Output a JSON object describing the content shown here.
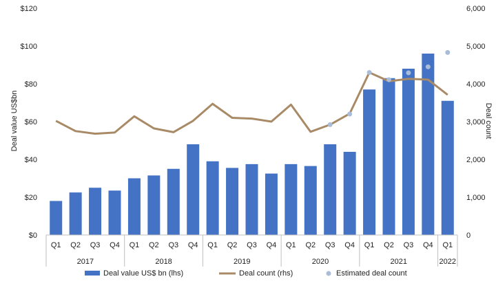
{
  "chart_data": {
    "type": "bar",
    "categories": [
      "Q1",
      "Q2",
      "Q3",
      "Q4",
      "Q1",
      "Q2",
      "Q3",
      "Q4",
      "Q1",
      "Q2",
      "Q3",
      "Q4",
      "Q1",
      "Q2",
      "Q3",
      "Q4",
      "Q1",
      "Q2",
      "Q3",
      "Q4",
      "Q1"
    ],
    "years": [
      {
        "label": "2017",
        "quarters": 4
      },
      {
        "label": "2018",
        "quarters": 4
      },
      {
        "label": "2019",
        "quarters": 4
      },
      {
        "label": "2020",
        "quarters": 4
      },
      {
        "label": "2021",
        "quarters": 4
      },
      {
        "label": "2022",
        "quarters": 1
      }
    ],
    "series": [
      {
        "name": "Deal value US$ bn (lhs)",
        "type": "bar",
        "axis": "left",
        "color": "#4472c4",
        "values": [
          18,
          22.5,
          25,
          23.5,
          30,
          31.5,
          35,
          48,
          39,
          35.5,
          37.5,
          32.5,
          37.5,
          36.5,
          48,
          44,
          77,
          83,
          88,
          96,
          71
        ]
      },
      {
        "name": "Deal count (rhs)",
        "type": "line",
        "axis": "right",
        "color": "#a88a66",
        "values": [
          3020,
          2750,
          2680,
          2710,
          3140,
          2820,
          2720,
          3020,
          3470,
          3100,
          3080,
          3000,
          3450,
          2730,
          2920,
          3210,
          4300,
          4070,
          4130,
          4110,
          3710
        ]
      },
      {
        "name": "Estimated deal count",
        "type": "scatter",
        "axis": "right",
        "color": "#a9bcd8",
        "points": [
          {
            "index": 14,
            "value": 2920
          },
          {
            "index": 15,
            "value": 3200
          },
          {
            "index": 16,
            "value": 4300
          },
          {
            "index": 17,
            "value": 4110
          },
          {
            "index": 18,
            "value": 4290
          },
          {
            "index": 19,
            "value": 4450
          },
          {
            "index": 20,
            "value": 4830
          }
        ]
      }
    ],
    "y_left": {
      "label": "Deal value US$bn",
      "min": 0,
      "max": 120,
      "ticks": [
        "$0",
        "$20",
        "$40",
        "$60",
        "$80",
        "$100",
        "$120"
      ]
    },
    "y_right": {
      "label": "Deal count",
      "min": 0,
      "max": 6000,
      "ticks": [
        "0",
        "1,000",
        "2,000",
        "3,000",
        "4,000",
        "5,000",
        "6,000"
      ]
    },
    "grid": false,
    "legend_position": "bottom"
  }
}
